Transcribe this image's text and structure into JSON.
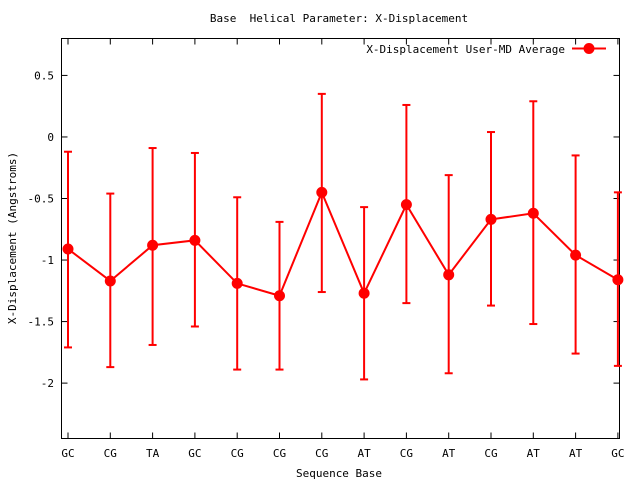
{
  "chart_data": {
    "type": "line",
    "title": "Base  Helical Parameter: X-Displacement",
    "xlabel": "Sequence Base",
    "ylabel": "X-Displacement (Angstroms)",
    "categories": [
      "GC",
      "CG",
      "TA",
      "GC",
      "CG",
      "CG",
      "CG",
      "AT",
      "CG",
      "AT",
      "CG",
      "AT",
      "AT",
      "GC"
    ],
    "yticks": [
      0.5,
      0,
      -0.5,
      -1,
      -1.5,
      -2
    ],
    "ytick_labels": [
      "0.5",
      "0",
      "-0.5",
      "-1",
      "-1.5",
      "-2"
    ],
    "ylim": [
      -2.45,
      0.8
    ],
    "legend_position": "top-right",
    "grid": false,
    "series": [
      {
        "name": "X-Displacement User-MD Average",
        "color": "#ff0000",
        "values": [
          -0.91,
          -1.17,
          -0.88,
          -0.84,
          -1.19,
          -1.29,
          -0.45,
          -1.27,
          -0.55,
          -1.12,
          -0.67,
          -0.62,
          -0.96,
          -1.16
        ],
        "err_low": [
          -1.71,
          -1.87,
          -1.69,
          -1.54,
          -1.89,
          -1.89,
          -1.26,
          -1.97,
          -1.35,
          -1.92,
          -1.37,
          -1.52,
          -1.76,
          -1.86
        ],
        "err_high": [
          -0.12,
          -0.46,
          -0.09,
          -0.13,
          -0.49,
          -0.69,
          0.35,
          -0.57,
          0.26,
          -0.31,
          0.04,
          0.29,
          -0.15,
          -0.45
        ]
      }
    ]
  }
}
